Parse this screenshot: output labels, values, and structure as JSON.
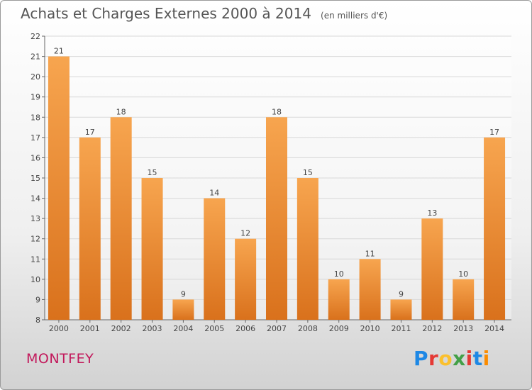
{
  "header": {
    "title": "Achats et Charges Externes 2000 à 2014",
    "unit": "(en milliers d'€)"
  },
  "footer": {
    "commune": "MONTFEY",
    "logo_text": "Proxiti",
    "logo_colors": [
      "#1e88e5",
      "#e53935",
      "#fbc02d",
      "#43a047",
      "#e53935",
      "#1e88e5",
      "#fb8c00"
    ]
  },
  "colors": {
    "bar_top": "#f7a54f",
    "bar_bottom": "#d9711c",
    "axis": "#666666",
    "grid": "#d8d8d8"
  },
  "chart_data": {
    "type": "bar",
    "title": "Achats et Charges Externes 2000 à 2014",
    "subtitle": "(en milliers d'€)",
    "categories": [
      "2000",
      "2001",
      "2002",
      "2003",
      "2004",
      "2005",
      "2006",
      "2007",
      "2008",
      "2009",
      "2010",
      "2011",
      "2012",
      "2013",
      "2014"
    ],
    "values": [
      21,
      17,
      18,
      15,
      9,
      14,
      12,
      18,
      15,
      10,
      11,
      9,
      13,
      10,
      17
    ],
    "ylim": [
      8,
      22
    ],
    "yticks": [
      8,
      9,
      10,
      11,
      12,
      13,
      14,
      15,
      16,
      17,
      18,
      19,
      20,
      21,
      22
    ],
    "grid": true,
    "data_labels": true
  }
}
